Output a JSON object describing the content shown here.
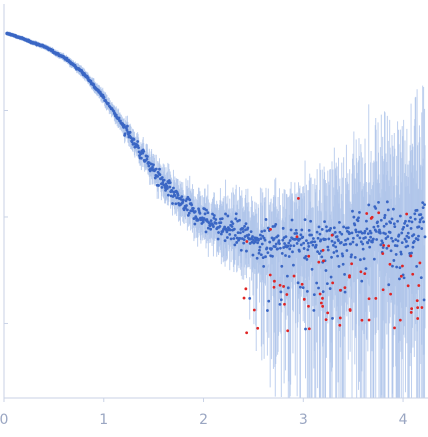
{
  "chart_data": {
    "type": "scatter",
    "title": "",
    "xlabel": "",
    "ylabel": "",
    "xlim": [
      0,
      4.25
    ],
    "ylim": [
      -0.7,
      3.0
    ],
    "y_scale": "log",
    "x_ticks": [
      0,
      1,
      2,
      3,
      4
    ],
    "x_tick_labels": [
      "0",
      "1",
      "2",
      "3",
      "4"
    ],
    "y_ticks": [
      0,
      1,
      2
    ],
    "y_tick_labels": [
      "",
      "",
      ""
    ],
    "grid": false,
    "legend": "none",
    "colors": {
      "included_points": "#3a66c4",
      "excluded_points": "#e02424",
      "error_bars": "#aec4ea",
      "axes": "#c9d2e6",
      "tick_labels": "#9aa6c2"
    },
    "series": [
      {
        "points": "included",
        "trend": {
          "x": [
            0.05,
            0.2,
            0.4,
            0.6,
            0.8,
            1.0,
            1.2,
            1.4,
            1.6,
            1.8,
            2.0,
            2.2,
            2.5,
            2.8,
            3.1,
            3.4,
            3.7,
            4.0,
            4.2
          ],
          "y": [
            2.72,
            2.67,
            2.6,
            2.5,
            2.35,
            2.12,
            1.85,
            1.57,
            1.3,
            1.1,
            0.98,
            0.9,
            0.8,
            0.77,
            0.78,
            0.8,
            0.85,
            0.9,
            0.92
          ]
        },
        "scatter_sd": 0.12,
        "error_sd_low_x": 0.02,
        "error_sd_high_x": 0.85
      },
      {
        "points": "excluded",
        "x_range": [
          2.4,
          4.25
        ],
        "y_range": [
          -0.1,
          1.25
        ]
      }
    ]
  }
}
